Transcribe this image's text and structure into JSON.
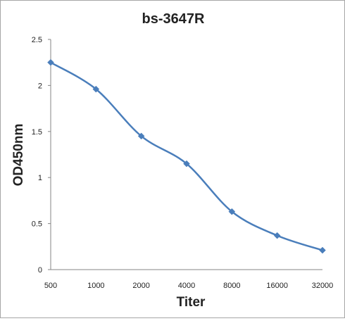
{
  "chart_data": {
    "type": "line",
    "title": "bs-3647R",
    "xlabel": "Titer",
    "ylabel": "OD450nm",
    "categories": [
      "500",
      "1000",
      "2000",
      "4000",
      "8000",
      "16000",
      "32000"
    ],
    "series": [
      {
        "values": [
          2.25,
          1.96,
          1.45,
          1.15,
          0.63,
          0.37,
          0.21
        ]
      }
    ],
    "ylim": [
      0,
      2.5
    ],
    "yticks": [
      "0",
      "0.5",
      "1",
      "1.5",
      "2",
      "2.5"
    ],
    "grid": false,
    "legend": "none",
    "line_color": "#4a7ebb",
    "smooth": true,
    "marker": "diamond"
  }
}
